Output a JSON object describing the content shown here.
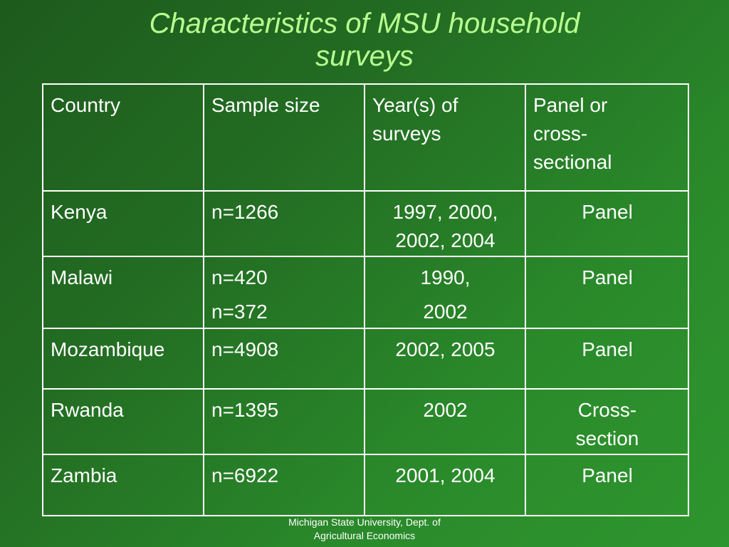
{
  "title": {
    "line1": "Characteristics of MSU household",
    "line2": "surveys"
  },
  "table": {
    "headers": {
      "country": "Country",
      "sample_size": "Sample size",
      "years_line1": "Year(s) of",
      "years_line2": "surveys",
      "panel_line1": "Panel or",
      "panel_line2": "cross-",
      "panel_line3": "sectional"
    },
    "rows": [
      {
        "country": "Kenya",
        "sample": "n=1266",
        "years_line1": "1997, 2000,",
        "years_line2": "2002, 2004",
        "type": "Panel"
      },
      {
        "country": "Malawi",
        "sample_line1": "n=420",
        "sample_line2": "n=372",
        "years_line1": "1990,",
        "years_line2": "2002",
        "type": "Panel"
      },
      {
        "country": "Mozambique",
        "sample": "n=4908",
        "years": "2002, 2005",
        "type": "Panel"
      },
      {
        "country": "Rwanda",
        "sample": "n=1395",
        "years": "2002",
        "type_line1": "Cross-",
        "type_line2": "section"
      },
      {
        "country": "Zambia",
        "sample": "n=6922",
        "years": "2001, 2004",
        "type": "Panel"
      }
    ]
  },
  "footer": {
    "line1": "Michigan State University, Dept. of",
    "line2": "Agricultural Economics"
  },
  "colors": {
    "background_dark": "#1d5a1d",
    "background_light": "#2e962e",
    "title": "#b9ff90",
    "text": "#ffffff",
    "grid": "#ffffff"
  }
}
